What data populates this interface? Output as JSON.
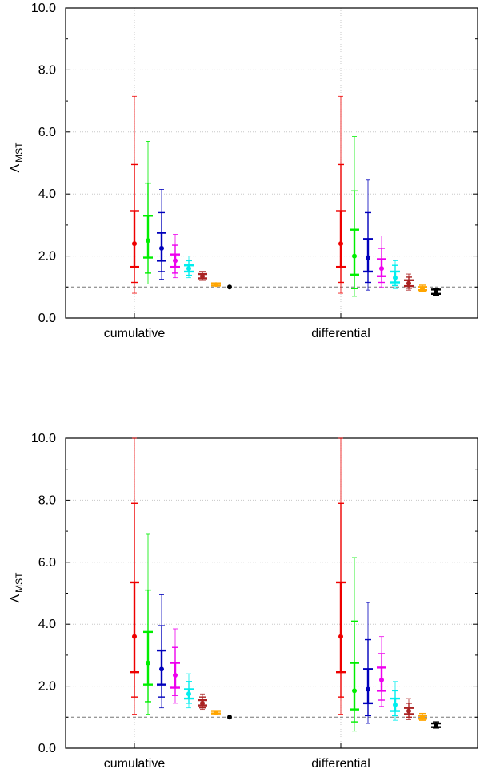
{
  "chart_data": [
    {
      "type": "errorbar",
      "ylabel": "Λ_MST",
      "ylabel_main": "Λ",
      "ylabel_sub": "MST",
      "ylim": [
        0,
        10
      ],
      "yticks": [
        "0.0",
        "2.0",
        "4.0",
        "6.0",
        "8.0",
        "10.0"
      ],
      "categories": [
        "cumulative",
        "differential"
      ],
      "reference_line": 1.0,
      "colors": [
        "#ee0000",
        "#00ee00",
        "#0000bb",
        "#ee00ee",
        "#00eeee",
        "#aa2222",
        "#ffa500",
        "#000000"
      ],
      "groups": [
        {
          "name": "cumulative",
          "points": [
            {
              "value": 2.4,
              "inner": [
                1.65,
                3.45
              ],
              "outer": [
                1.15,
                4.95
              ],
              "far": [
                0.8,
                7.15
              ]
            },
            {
              "value": 2.5,
              "inner": [
                1.95,
                3.3
              ],
              "outer": [
                1.45,
                4.35
              ],
              "far": [
                1.1,
                5.7
              ]
            },
            {
              "value": 2.25,
              "inner": [
                1.85,
                2.75
              ],
              "outer": [
                1.5,
                3.4
              ],
              "far": [
                1.25,
                4.15
              ]
            },
            {
              "value": 1.85,
              "inner": [
                1.65,
                2.05
              ],
              "outer": [
                1.45,
                2.35
              ],
              "far": [
                1.3,
                2.7
              ]
            },
            {
              "value": 1.6,
              "inner": [
                1.5,
                1.7
              ],
              "outer": [
                1.38,
                1.85
              ],
              "far": [
                1.3,
                2.0
              ]
            },
            {
              "value": 1.35,
              "inner": [
                1.28,
                1.42
              ],
              "outer": [
                1.22,
                1.5
              ]
            },
            {
              "value": 1.08,
              "inner": [
                1.05,
                1.12
              ]
            },
            {
              "value": 1.0
            }
          ]
        },
        {
          "name": "differential",
          "points": [
            {
              "value": 2.4,
              "inner": [
                1.65,
                3.45
              ],
              "outer": [
                1.15,
                4.95
              ],
              "far": [
                0.8,
                7.15
              ]
            },
            {
              "value": 2.0,
              "inner": [
                1.4,
                2.85
              ],
              "outer": [
                0.95,
                4.1
              ],
              "far": [
                0.7,
                5.85
              ]
            },
            {
              "value": 1.95,
              "inner": [
                1.5,
                2.55
              ],
              "outer": [
                1.15,
                3.4
              ],
              "far": [
                0.9,
                4.45
              ]
            },
            {
              "value": 1.6,
              "inner": [
                1.35,
                1.9
              ],
              "outer": [
                1.15,
                2.25
              ],
              "far": [
                1.0,
                2.65
              ]
            },
            {
              "value": 1.3,
              "inner": [
                1.15,
                1.5
              ],
              "outer": [
                1.05,
                1.7
              ],
              "far": [
                0.95,
                1.85
              ]
            },
            {
              "value": 1.12,
              "inner": [
                1.03,
                1.22
              ],
              "outer": [
                0.96,
                1.32
              ],
              "far": [
                0.9,
                1.42
              ]
            },
            {
              "value": 0.95,
              "inner": [
                0.9,
                1.0
              ],
              "outer": [
                0.86,
                1.06
              ]
            },
            {
              "value": 0.85,
              "inner": [
                0.78,
                0.92
              ],
              "outer": [
                0.74,
                0.96
              ]
            }
          ]
        }
      ]
    },
    {
      "type": "errorbar",
      "ylabel": "Λ_MST",
      "ylabel_main": "Λ",
      "ylabel_sub": "MST",
      "ylim": [
        0,
        10
      ],
      "yticks": [
        "0.0",
        "2.0",
        "4.0",
        "6.0",
        "8.0",
        "10.0"
      ],
      "categories": [
        "cumulative",
        "differential"
      ],
      "reference_line": 1.0,
      "colors": [
        "#ee0000",
        "#00ee00",
        "#0000bb",
        "#ee00ee",
        "#00eeee",
        "#aa2222",
        "#ffa500",
        "#000000"
      ],
      "groups": [
        {
          "name": "cumulative",
          "points": [
            {
              "value": 3.6,
              "inner": [
                2.45,
                5.35
              ],
              "outer": [
                1.65,
                7.9
              ],
              "far": [
                1.1,
                10.0
              ]
            },
            {
              "value": 2.75,
              "inner": [
                2.05,
                3.75
              ],
              "outer": [
                1.5,
                5.1
              ],
              "far": [
                1.1,
                6.9
              ]
            },
            {
              "value": 2.55,
              "inner": [
                2.05,
                3.15
              ],
              "outer": [
                1.65,
                3.95
              ],
              "far": [
                1.3,
                4.95
              ]
            },
            {
              "value": 2.35,
              "inner": [
                1.95,
                2.75
              ],
              "outer": [
                1.7,
                3.25
              ],
              "far": [
                1.45,
                3.85
              ]
            },
            {
              "value": 1.75,
              "inner": [
                1.6,
                1.9
              ],
              "outer": [
                1.45,
                2.15
              ],
              "far": [
                1.3,
                2.4
              ]
            },
            {
              "value": 1.45,
              "inner": [
                1.38,
                1.55
              ],
              "outer": [
                1.3,
                1.65
              ],
              "far": [
                1.25,
                1.75
              ]
            },
            {
              "value": 1.15,
              "inner": [
                1.12,
                1.2
              ]
            },
            {
              "value": 1.0
            }
          ]
        },
        {
          "name": "differential",
          "points": [
            {
              "value": 3.6,
              "inner": [
                2.45,
                5.35
              ],
              "outer": [
                1.65,
                7.9
              ],
              "far": [
                1.1,
                10.0
              ]
            },
            {
              "value": 1.85,
              "inner": [
                1.25,
                2.75
              ],
              "outer": [
                0.85,
                4.1
              ],
              "far": [
                0.55,
                6.15
              ]
            },
            {
              "value": 1.9,
              "inner": [
                1.45,
                2.55
              ],
              "outer": [
                1.05,
                3.5
              ],
              "far": [
                0.8,
                4.7
              ]
            },
            {
              "value": 2.2,
              "inner": [
                1.85,
                2.6
              ],
              "outer": [
                1.55,
                3.05
              ],
              "far": [
                1.35,
                3.6
              ]
            },
            {
              "value": 1.4,
              "inner": [
                1.2,
                1.6
              ],
              "outer": [
                1.05,
                1.85
              ],
              "far": [
                0.9,
                2.15
              ]
            },
            {
              "value": 1.2,
              "inner": [
                1.1,
                1.3
              ],
              "outer": [
                1.0,
                1.45
              ],
              "far": [
                0.92,
                1.6
              ]
            },
            {
              "value": 1.0,
              "inner": [
                0.95,
                1.05
              ],
              "outer": [
                0.9,
                1.12
              ]
            },
            {
              "value": 0.75,
              "inner": [
                0.68,
                0.8
              ],
              "outer": [
                0.65,
                0.85
              ]
            }
          ]
        }
      ]
    }
  ]
}
